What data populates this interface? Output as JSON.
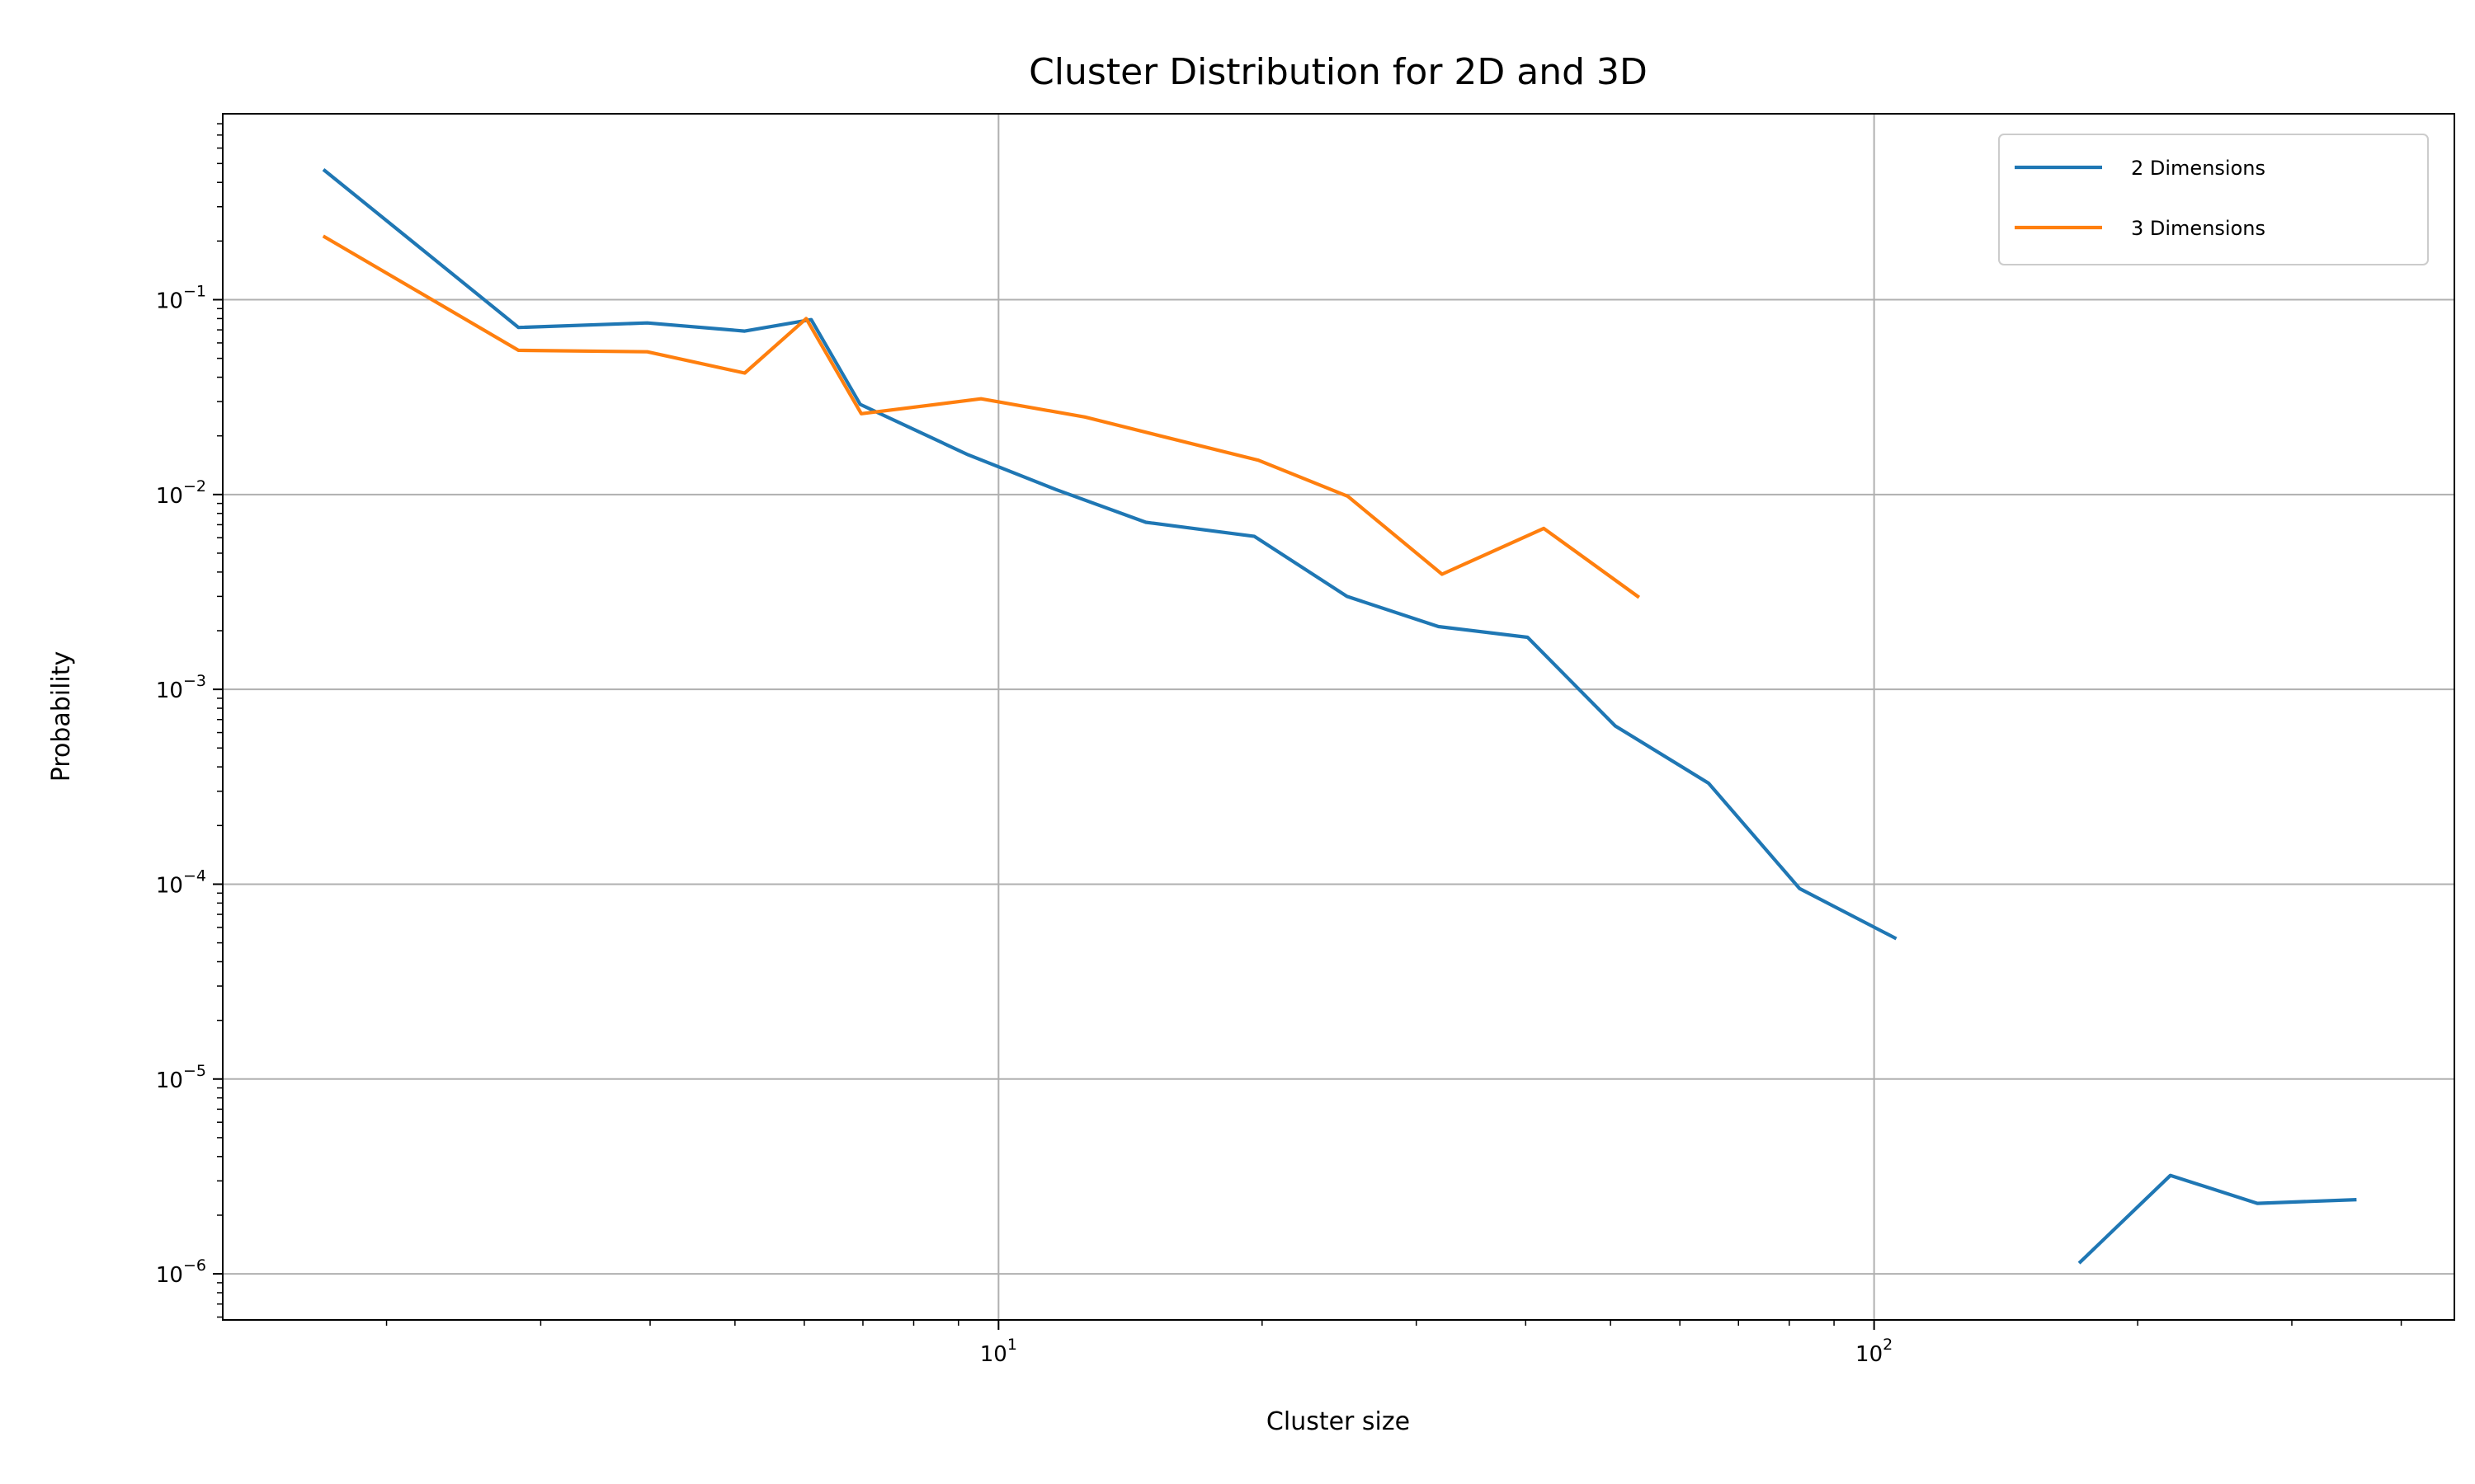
{
  "chart_data": {
    "type": "line",
    "title": "Cluster Distribution for 2D and 3D",
    "xlabel": "Cluster size",
    "ylabel": "Probability",
    "xscale": "log",
    "yscale": "log",
    "xlim": [
      1.3,
      460
    ],
    "ylim": [
      5.8e-07,
      0.9
    ],
    "grid": true,
    "legend_position": "top-right",
    "x_major_ticks": [
      {
        "value": 10,
        "base": "10",
        "exp": "1"
      },
      {
        "value": 100,
        "base": "10",
        "exp": "2"
      }
    ],
    "y_major_ticks": [
      {
        "value": 0.1,
        "base": "10",
        "exp": "−1"
      },
      {
        "value": 0.01,
        "base": "10",
        "exp": "−2"
      },
      {
        "value": 0.001,
        "base": "10",
        "exp": "−3"
      },
      {
        "value": 0.0001,
        "base": "10",
        "exp": "−4"
      },
      {
        "value": 1e-05,
        "base": "10",
        "exp": "−5"
      },
      {
        "value": 1e-06,
        "base": "10",
        "exp": "−6"
      }
    ],
    "series": [
      {
        "name": "2 Dimensions",
        "color": "#1f77b4",
        "segments": [
          {
            "x": [
              1.7,
              2.83,
              3.97,
              5.13,
              6.11,
              6.95,
              9.23,
              11.63,
              14.73,
              19.6,
              25.0,
              31.8,
              40.2,
              50.6,
              64.7,
              82.2,
              105.6
            ],
            "y": [
              0.46,
              0.072,
              0.076,
              0.069,
              0.079,
              0.029,
              0.016,
              0.0106,
              0.0072,
              0.0061,
              0.003,
              0.0021,
              0.00185,
              0.00065,
              0.00033,
              9.5e-05,
              5.3e-05
            ]
          },
          {
            "x": [
              172,
              218,
              274,
              354
            ],
            "y": [
              1.15e-06,
              3.2e-06,
              2.3e-06,
              2.4e-06
            ]
          }
        ]
      },
      {
        "name": "3 Dimensions",
        "color": "#ff7f0e",
        "segments": [
          {
            "x": [
              1.7,
              2.83,
              3.97,
              5.13,
              6.03,
              6.97,
              9.55,
              12.55,
              15.3,
              19.8,
              25.05,
              32.1,
              41.95,
              53.7
            ],
            "y": [
              0.21,
              0.055,
              0.054,
              0.042,
              0.08,
              0.026,
              0.031,
              0.025,
              0.02,
              0.015,
              0.0098,
              0.0039,
              0.0067,
              0.003
            ]
          }
        ]
      }
    ]
  }
}
